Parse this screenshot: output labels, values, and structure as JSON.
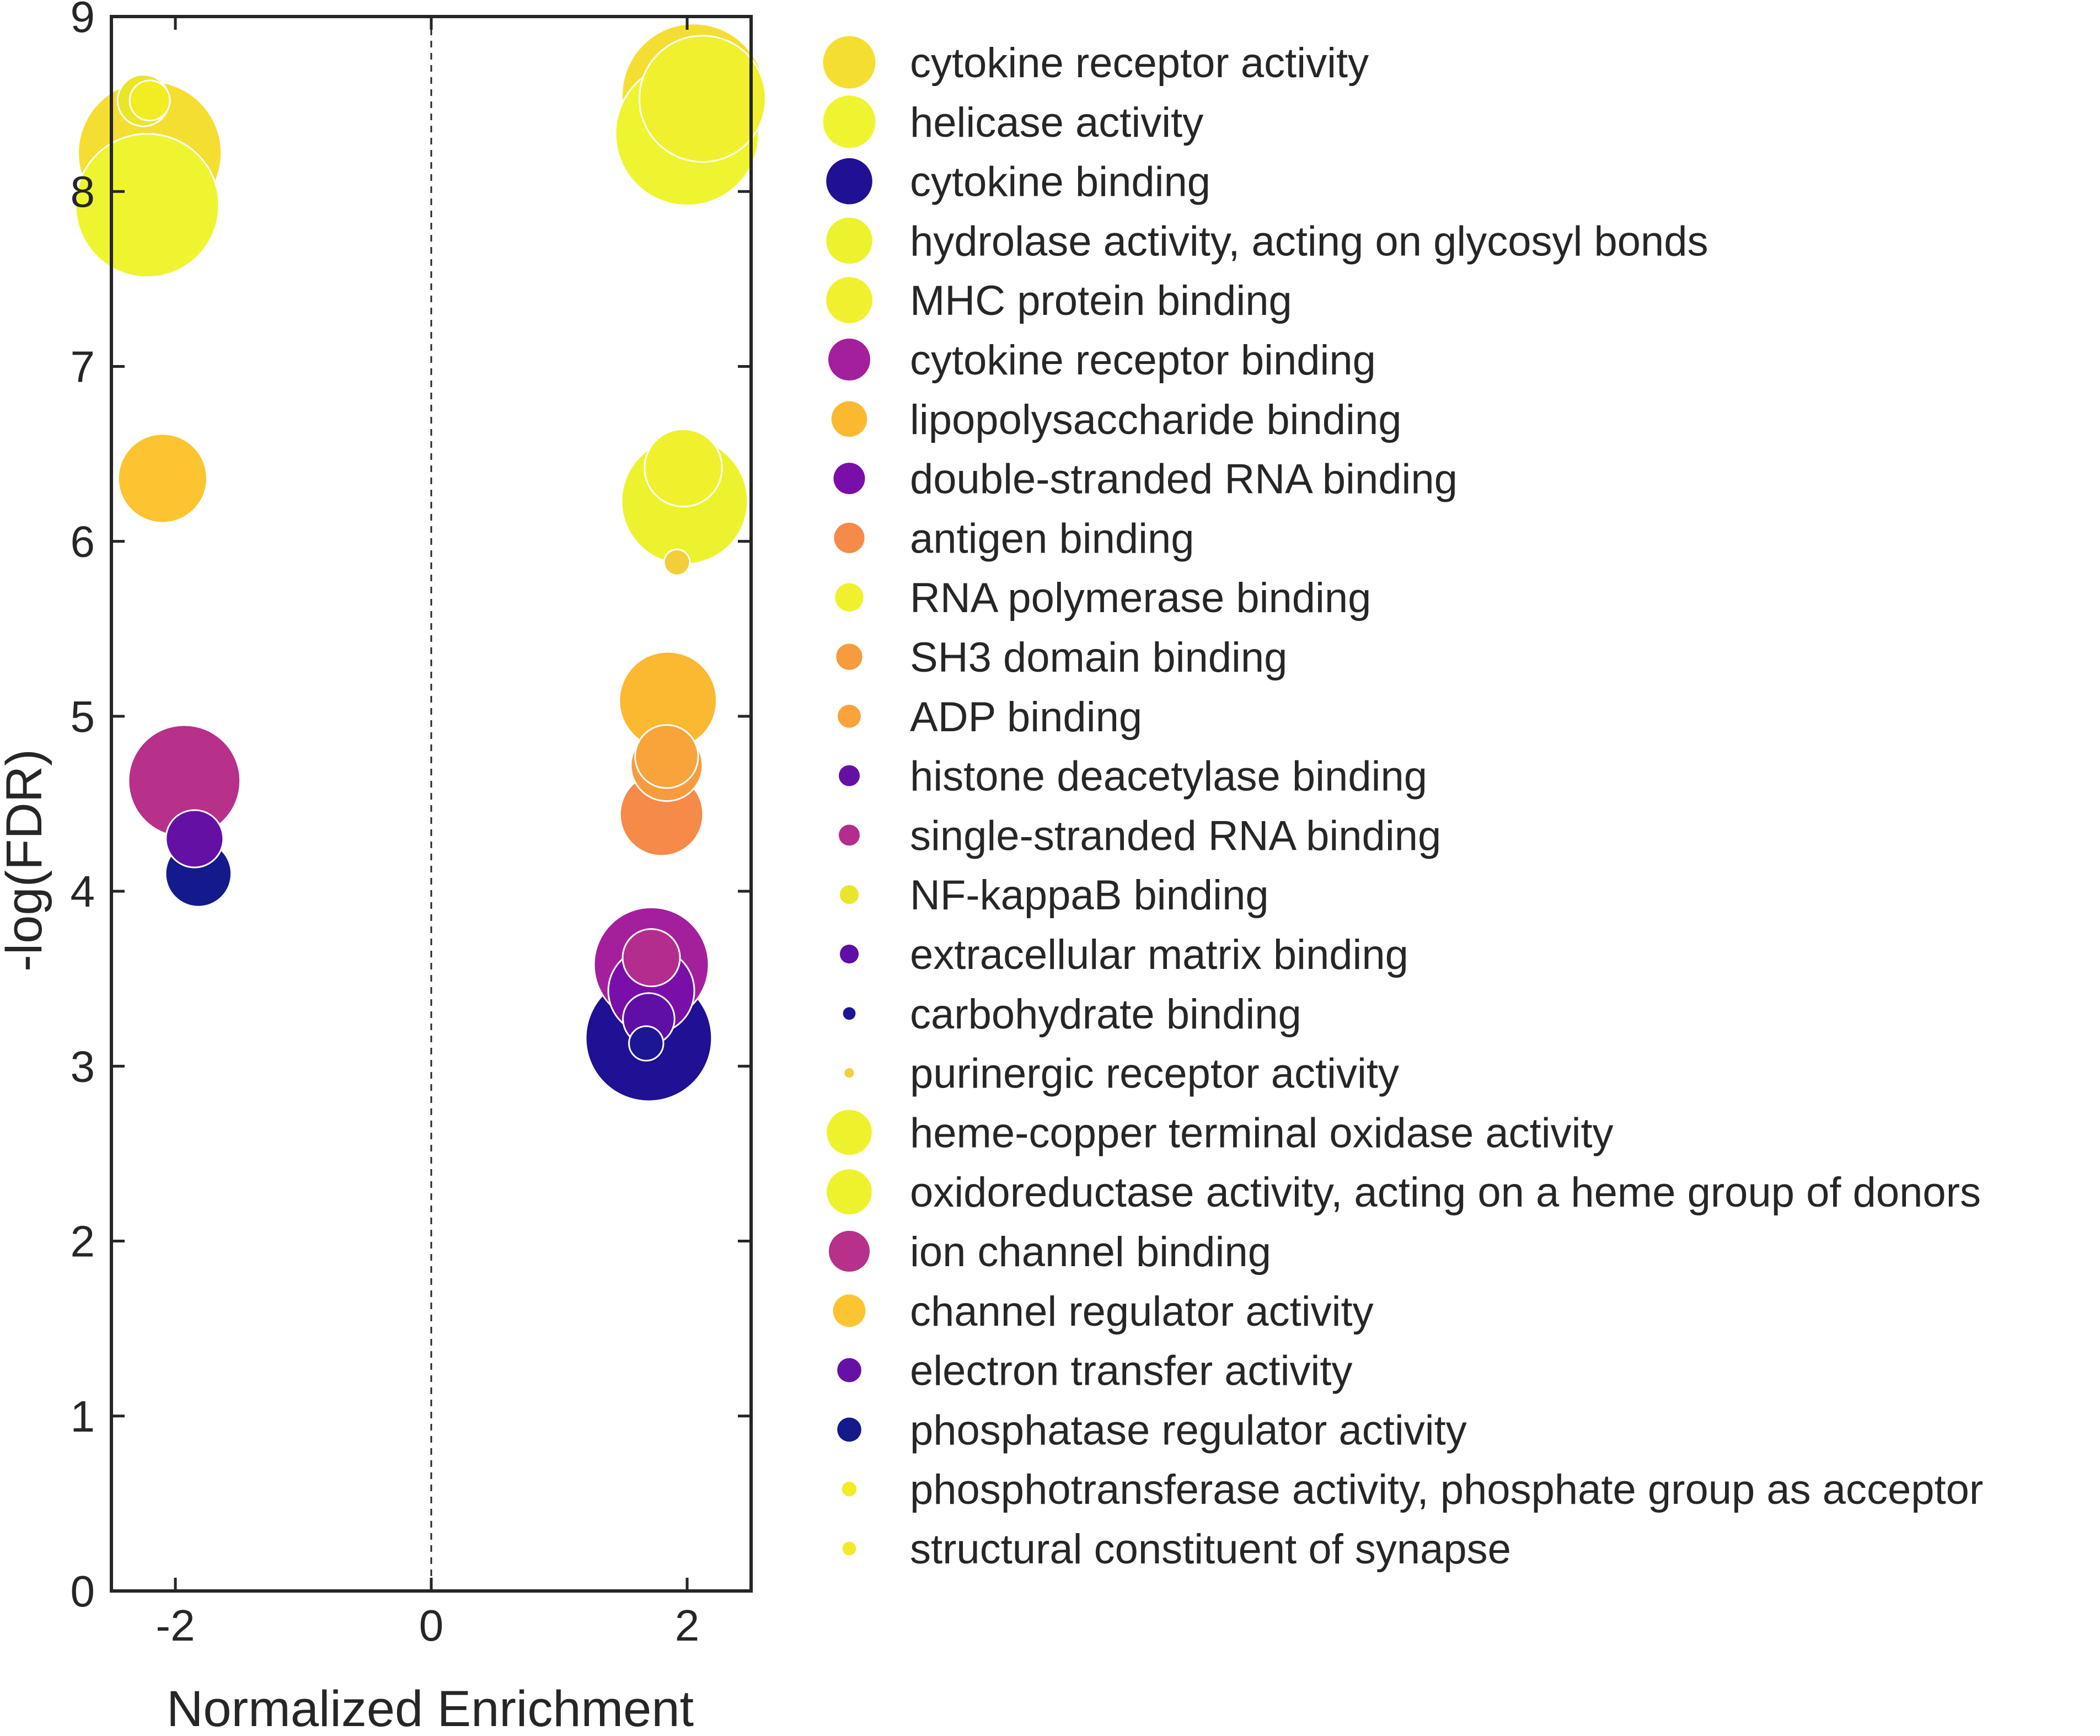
{
  "chart_data": {
    "type": "scatter",
    "xlabel": "Normalized Enrichment",
    "ylabel": "-log(FDR)",
    "xlim": [
      -2.5,
      2.5
    ],
    "ylim": [
      0,
      9
    ],
    "x_ticks": [
      "-2",
      "0",
      "2"
    ],
    "y_ticks": [
      "0",
      "1",
      "2",
      "3",
      "4",
      "5",
      "6",
      "7",
      "8",
      "9"
    ],
    "reference_line": {
      "x": 0,
      "style": "dashed"
    },
    "legend_position": "right-outside",
    "series": [
      {
        "name": "cytokine receptor activity",
        "color": "#f5de32",
        "size": 5,
        "points": [
          {
            "x": -2.2,
            "y": 8.22
          },
          {
            "x": 2.05,
            "y": 8.55
          }
        ]
      },
      {
        "name": "helicase activity",
        "color": "#eef530",
        "size": 5,
        "points": [
          {
            "x": -2.22,
            "y": 7.92
          },
          {
            "x": 2.0,
            "y": 8.33
          }
        ]
      },
      {
        "name": "cytokine binding",
        "color": "#201093",
        "size": 4.4,
        "points": [
          {
            "x": 1.7,
            "y": 3.16
          }
        ]
      },
      {
        "name": "hydrolase activity, acting on glycosyl bonds",
        "color": "#edf22f",
        "size": 4.4,
        "points": [
          {
            "x": 1.98,
            "y": 6.23
          }
        ]
      },
      {
        "name": "MHC protein binding",
        "color": "#f0f02e",
        "size": 4.4,
        "points": [
          {
            "x": 2.12,
            "y": 8.53
          }
        ]
      },
      {
        "name": "cytokine receptor binding",
        "color": "#a41f9c",
        "size": 4.0,
        "points": [
          {
            "x": 1.72,
            "y": 3.58
          }
        ]
      },
      {
        "name": "lipopolysaccharide binding",
        "color": "#fbb931",
        "size": 3.4,
        "points": [
          {
            "x": 1.85,
            "y": 5.09
          }
        ]
      },
      {
        "name": "double-stranded RNA binding",
        "color": "#7a0ea8",
        "size": 3.0,
        "points": [
          {
            "x": 1.72,
            "y": 3.43
          }
        ]
      },
      {
        "name": "antigen binding",
        "color": "#f68a48",
        "size": 2.9,
        "points": [
          {
            "x": 1.8,
            "y": 4.44
          }
        ]
      },
      {
        "name": "RNA polymerase binding",
        "color": "#f0f02d",
        "size": 2.7,
        "points": [
          {
            "x": 1.97,
            "y": 6.42
          }
        ]
      },
      {
        "name": "SH3 domain binding",
        "color": "#f79c3e",
        "size": 2.5,
        "points": [
          {
            "x": 1.84,
            "y": 4.72
          }
        ]
      },
      {
        "name": "ADP binding",
        "color": "#f9a33b",
        "size": 2.2,
        "points": [
          {
            "x": 1.84,
            "y": 4.77
          }
        ]
      },
      {
        "name": "histone deacetylase binding",
        "color": "#6510a5",
        "size": 2.0,
        "points": [
          {
            "x": -1.85,
            "y": 4.3
          }
        ]
      },
      {
        "name": "single-stranded RNA binding",
        "color": "#b32d8e",
        "size": 2.0,
        "points": [
          {
            "x": 1.72,
            "y": 3.62
          }
        ]
      },
      {
        "name": "NF-kappaB binding",
        "color": "#e9e62a",
        "size": 1.8,
        "points": [
          {
            "x": -2.25,
            "y": 8.52
          }
        ]
      },
      {
        "name": "extracellular matrix binding",
        "color": "#5f0ea6",
        "size": 1.8,
        "points": [
          {
            "x": 1.7,
            "y": 3.27
          }
        ]
      },
      {
        "name": "carbohydrate binding",
        "color": "#1c1694",
        "size": 1.2,
        "points": [
          {
            "x": 1.68,
            "y": 3.13
          }
        ]
      },
      {
        "name": "purinergic receptor activity",
        "color": "#f2cf3a",
        "size": 0.9,
        "points": [
          {
            "x": 1.92,
            "y": 5.88
          }
        ]
      },
      {
        "name": "heme-copper terminal oxidase activity",
        "color": "#eef22c",
        "size": 4.3,
        "points": []
      },
      {
        "name": "oxidoreductase activity, acting on a heme group of donors",
        "color": "#eef22c",
        "size": 4.3,
        "points": []
      },
      {
        "name": "ion channel binding",
        "color": "#b7308a",
        "size": 3.9,
        "points": [
          {
            "x": -1.93,
            "y": 4.63
          }
        ]
      },
      {
        "name": "channel regulator activity",
        "color": "#fcc430",
        "size": 3.1,
        "points": [
          {
            "x": -2.1,
            "y": 6.36
          }
        ]
      },
      {
        "name": "electron transfer activity",
        "color": "#6611a5",
        "size": 2.3,
        "points": []
      },
      {
        "name": "phosphatase regulator activity",
        "color": "#141a8b",
        "size": 2.3,
        "points": [
          {
            "x": -1.82,
            "y": 4.1
          }
        ]
      },
      {
        "name": "phosphotransferase activity, phosphate group as acceptor",
        "color": "#f2ec22",
        "size": 1.4,
        "points": [
          {
            "x": -2.2,
            "y": 8.52
          }
        ]
      },
      {
        "name": "structural constituent of synapse",
        "color": "#f0ea2a",
        "size": 1.3,
        "points": []
      }
    ]
  }
}
